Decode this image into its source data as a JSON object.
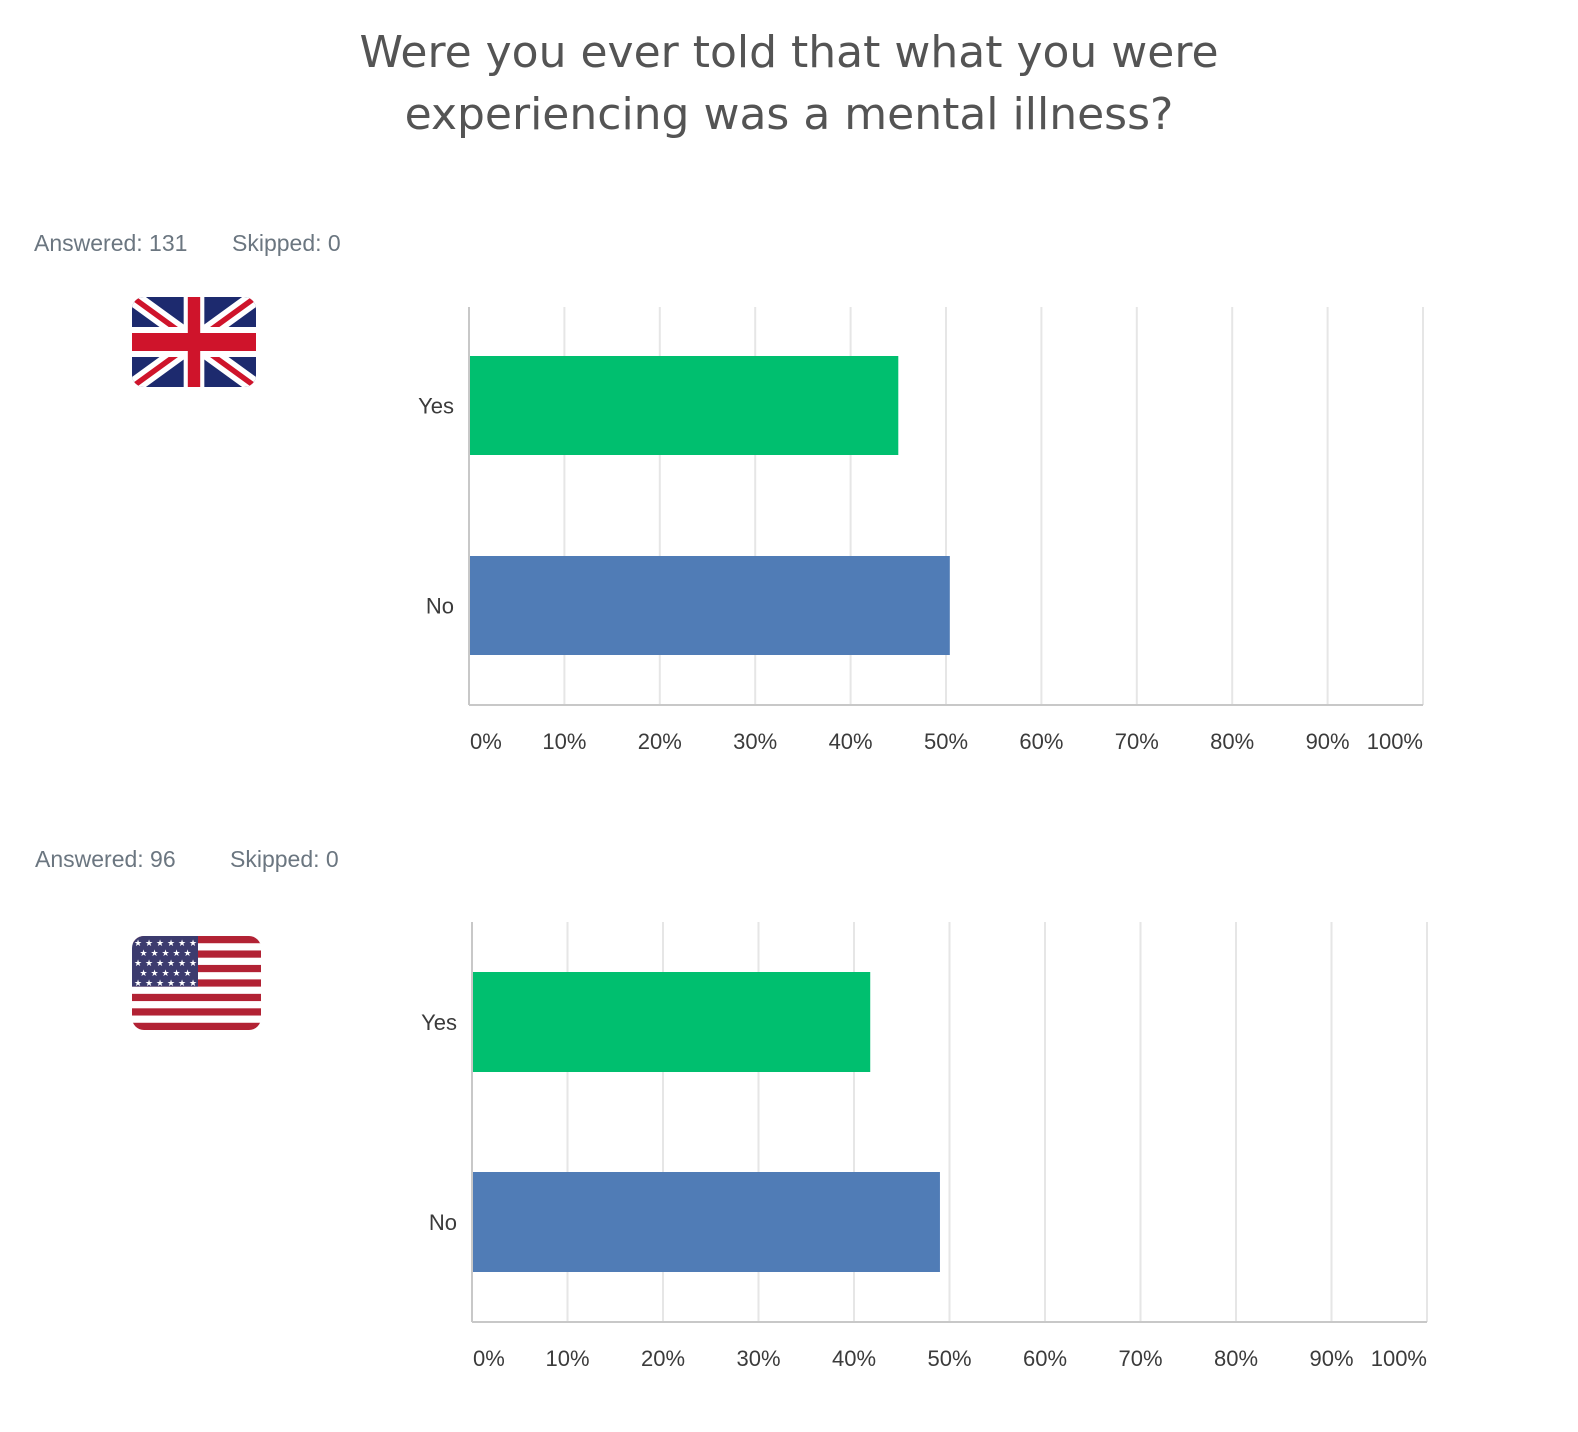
{
  "title_lines": [
    "Were you ever told that what you were",
    "experiencing was a mental illness?"
  ],
  "panels": [
    {
      "answered": "Answered: 131",
      "skipped": "Skipped: 0",
      "flag": "uk-flag-icon"
    },
    {
      "answered": "Answered: 96",
      "skipped": "Skipped: 0",
      "flag": "us-flag-icon"
    }
  ],
  "colors": {
    "yes": "#00bf6f",
    "no": "#507cb6",
    "grid": "#e6e6e6",
    "axis": "#c8c8c8"
  },
  "chart_data": [
    {
      "type": "bar",
      "orientation": "horizontal",
      "categories": [
        "Yes",
        "No"
      ],
      "values": [
        45,
        50.4
      ],
      "x_ticks": [
        "0%",
        "10%",
        "20%",
        "30%",
        "40%",
        "50%",
        "60%",
        "70%",
        "80%",
        "90%",
        "100%"
      ],
      "xlim": [
        0,
        100
      ]
    },
    {
      "type": "bar",
      "orientation": "horizontal",
      "categories": [
        "Yes",
        "No"
      ],
      "values": [
        41.7,
        49
      ],
      "x_ticks": [
        "0%",
        "10%",
        "20%",
        "30%",
        "40%",
        "50%",
        "60%",
        "70%",
        "80%",
        "90%",
        "100%"
      ],
      "xlim": [
        0,
        100
      ]
    }
  ]
}
